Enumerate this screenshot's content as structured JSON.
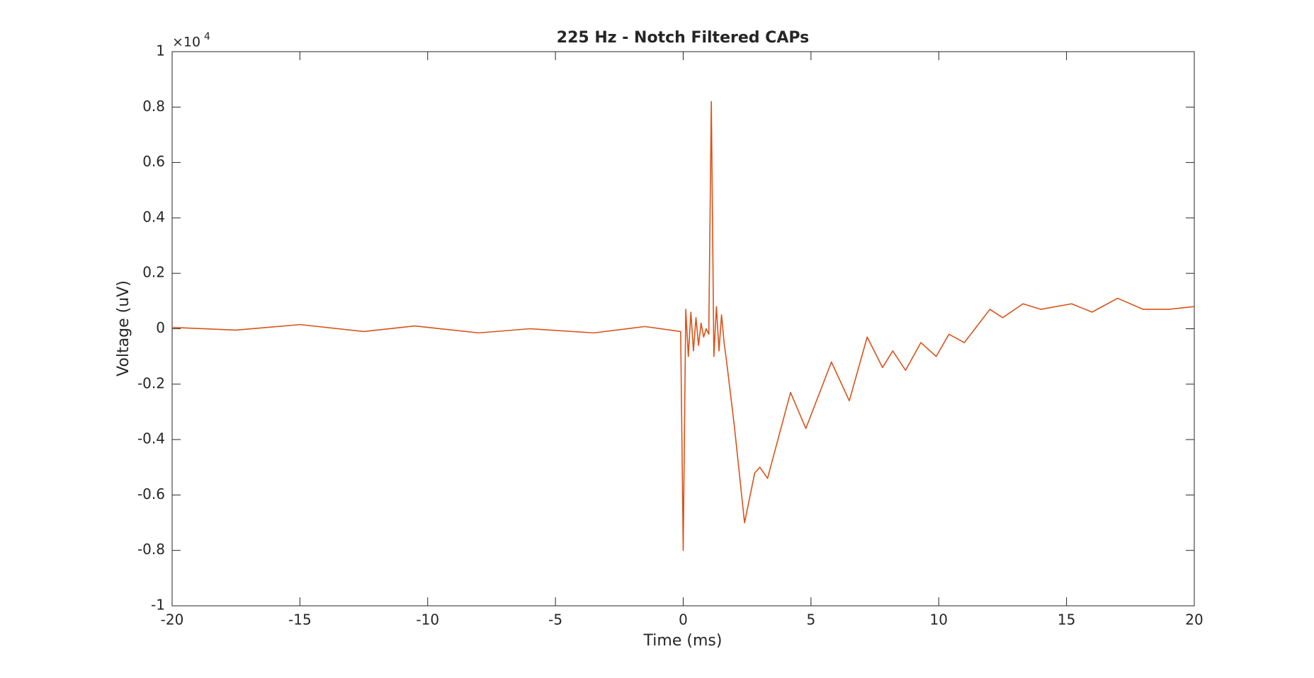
{
  "chart_data": {
    "type": "line",
    "title": "225 Hz - Notch Filtered CAPs",
    "x_label": "Time (ms)",
    "y_label": "Voltage (uV)",
    "y_multiplier": "×10",
    "y_multiplier_exp": "4",
    "x": [
      -20,
      -17.5,
      -15,
      -12.5,
      -10.5,
      -8,
      -6,
      -3.5,
      -1.5,
      -0.1,
      0,
      0.1,
      0.2,
      0.3,
      0.4,
      0.5,
      0.6,
      0.7,
      0.8,
      0.9,
      1.0,
      1.1,
      1.2,
      1.3,
      1.4,
      1.5,
      1.6,
      1.7,
      2.0,
      2.4,
      2.8,
      3.0,
      3.3,
      4.2,
      4.8,
      5.8,
      6.5,
      7.2,
      7.8,
      8.2,
      8.7,
      9.3,
      9.9,
      10.4,
      11,
      12,
      12.5,
      13.3,
      14,
      15.2,
      16,
      17,
      18,
      19,
      20
    ],
    "series": [
      {
        "color": "#d95319",
        "values": [
          0.005,
          -0.005,
          0.015,
          -0.01,
          0.01,
          -0.015,
          0,
          -0.015,
          0.008,
          -0.01,
          -0.8,
          0.07,
          -0.1,
          0.06,
          -0.08,
          0.04,
          -0.06,
          0.02,
          -0.03,
          0,
          -0.02,
          0.82,
          -0.1,
          0.08,
          -0.08,
          0.05,
          -0.05,
          -0.12,
          -0.35,
          -0.7,
          -0.52,
          -0.5,
          -0.54,
          -0.23,
          -0.36,
          -0.12,
          -0.26,
          -0.03,
          -0.14,
          -0.08,
          -0.15,
          -0.05,
          -0.1,
          -0.02,
          -0.05,
          0.07,
          0.04,
          0.09,
          0.07,
          0.09,
          0.06,
          0.11,
          0.07,
          0.07,
          0.08
        ]
      }
    ],
    "xlim": [
      -20,
      20
    ],
    "xticks": [
      -20,
      -15,
      -10,
      -5,
      0,
      5,
      10,
      15,
      20
    ],
    "ylim": [
      -1,
      1
    ],
    "yticks": [
      -1,
      -0.8,
      -0.6,
      -0.4,
      -0.2,
      0,
      0.2,
      0.4,
      0.6,
      0.8,
      1
    ],
    "grid": false
  }
}
